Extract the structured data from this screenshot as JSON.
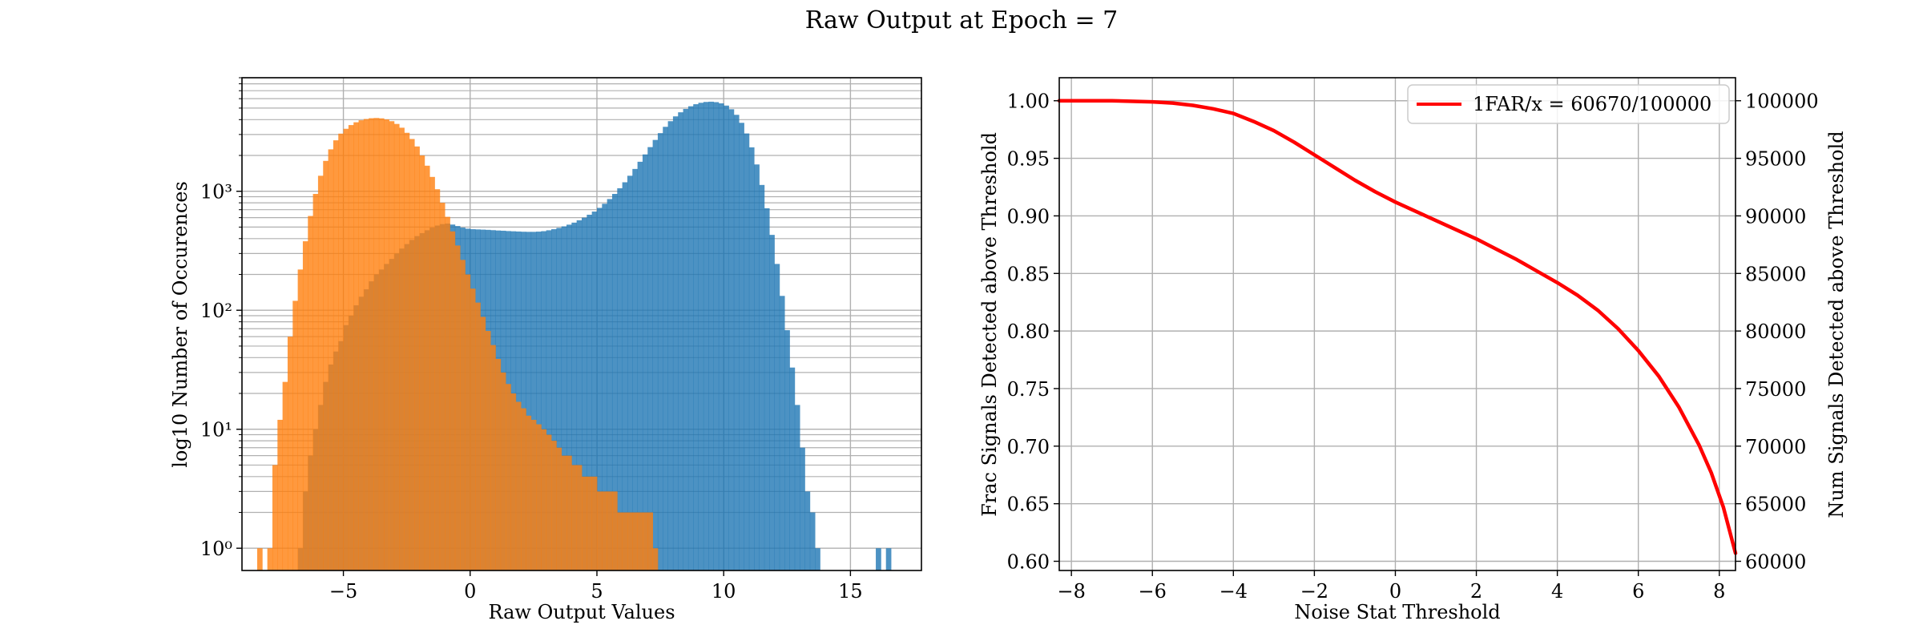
{
  "figure": {
    "title": "Raw Output at Epoch = 7"
  },
  "colors": {
    "blue": "#1f77b4",
    "orange": "#ff7f0e",
    "red": "#ff0000",
    "grid": "#b0b0b0"
  },
  "chart_data": [
    {
      "type": "bar",
      "subtype": "histogram",
      "xlabel": "Raw Output Values",
      "ylabel": "log10 Number of Occurences",
      "xlim": [
        -9.0,
        17.8
      ],
      "ylim": [
        0.65,
        9000
      ],
      "yscale": "log",
      "xticks": [
        -5,
        0,
        5,
        10,
        15
      ],
      "xtick_labels": [
        "−5",
        "0",
        "5",
        "10",
        "15"
      ],
      "yticks": [
        1,
        10,
        100,
        1000
      ],
      "ytick_labels": [
        "10⁰",
        "10¹",
        "10²",
        "10³"
      ],
      "grid": true,
      "bin_width": 0.2,
      "series": [
        {
          "color": "#1f77b4",
          "alpha": 0.8,
          "bins": [
            [
              -6.7,
              1.0
            ],
            [
              -6.5,
              3.0
            ],
            [
              -6.3,
              6.0
            ],
            [
              -6.1,
              10.0
            ],
            [
              -5.9,
              16.0
            ],
            [
              -5.7,
              25.0
            ],
            [
              -5.5,
              35.0
            ],
            [
              -5.3,
              45.0
            ],
            [
              -5.1,
              55.0
            ],
            [
              -4.9,
              75.0
            ],
            [
              -4.7,
              90.0
            ],
            [
              -4.5,
              110.0
            ],
            [
              -4.3,
              130.0
            ],
            [
              -4.1,
              150.0
            ],
            [
              -3.9,
              175.0
            ],
            [
              -3.7,
              200.0
            ],
            [
              -3.5,
              220.0
            ],
            [
              -3.3,
              245.0
            ],
            [
              -3.1,
              270.0
            ],
            [
              -2.9,
              300.0
            ],
            [
              -2.7,
              330.0
            ],
            [
              -2.5,
              360.0
            ],
            [
              -2.3,
              390.0
            ],
            [
              -2.1,
              420.0
            ],
            [
              -1.9,
              445.0
            ],
            [
              -1.7,
              470.0
            ],
            [
              -1.5,
              495.0
            ],
            [
              -1.3,
              515.0
            ],
            [
              -1.1,
              530.0
            ],
            [
              -0.9,
              535.0
            ],
            [
              -0.7,
              525.0
            ],
            [
              -0.5,
              510.0
            ],
            [
              -0.3,
              495.0
            ],
            [
              -0.1,
              485.0
            ],
            [
              0.1,
              480.0
            ],
            [
              0.3,
              478.0
            ],
            [
              0.5,
              476.0
            ],
            [
              0.7,
              474.0
            ],
            [
              0.9,
              471.0
            ],
            [
              1.1,
              468.0
            ],
            [
              1.3,
              466.0
            ],
            [
              1.5,
              463.0
            ],
            [
              1.7,
              461.0
            ],
            [
              1.9,
              459.0
            ],
            [
              2.1,
              457.0
            ],
            [
              2.3,
              456.0
            ],
            [
              2.5,
              456.0
            ],
            [
              2.7,
              458.0
            ],
            [
              2.9,
              462.0
            ],
            [
              3.1,
              470.0
            ],
            [
              3.3,
              480.0
            ],
            [
              3.5,
              492.0
            ],
            [
              3.7,
              507.0
            ],
            [
              3.9,
              524.0
            ],
            [
              4.1,
              545.0
            ],
            [
              4.3,
              570.0
            ],
            [
              4.5,
              600.0
            ],
            [
              4.7,
              635.0
            ],
            [
              4.9,
              675.0
            ],
            [
              5.1,
              725.0
            ],
            [
              5.3,
              785.0
            ],
            [
              5.5,
              860.0
            ],
            [
              5.7,
              950.0
            ],
            [
              5.9,
              1060.0
            ],
            [
              6.1,
              1190.0
            ],
            [
              6.3,
              1350.0
            ],
            [
              6.5,
              1540.0
            ],
            [
              6.7,
              1770.0
            ],
            [
              6.9,
              2040.0
            ],
            [
              7.1,
              2350.0
            ],
            [
              7.3,
              2700.0
            ],
            [
              7.5,
              3080.0
            ],
            [
              7.7,
              3480.0
            ],
            [
              7.9,
              3880.0
            ],
            [
              8.1,
              4260.0
            ],
            [
              8.3,
              4610.0
            ],
            [
              8.5,
              4920.0
            ],
            [
              8.7,
              5180.0
            ],
            [
              8.9,
              5390.0
            ],
            [
              9.1,
              5540.0
            ],
            [
              9.3,
              5630.0
            ],
            [
              9.5,
              5660.0
            ],
            [
              9.7,
              5610.0
            ],
            [
              9.9,
              5480.0
            ],
            [
              10.1,
              5250.0
            ],
            [
              10.3,
              4890.0
            ],
            [
              10.5,
              4390.0
            ],
            [
              10.7,
              3760.0
            ],
            [
              10.9,
              3060.0
            ],
            [
              11.1,
              2340.0
            ],
            [
              11.3,
              1680.0
            ],
            [
              11.5,
              1130.0
            ],
            [
              11.7,
              720.0
            ],
            [
              11.9,
              430.0
            ],
            [
              12.1,
              245.0
            ],
            [
              12.3,
              132.0
            ],
            [
              12.5,
              68.0
            ],
            [
              12.7,
              33.0
            ],
            [
              12.9,
              16.0
            ],
            [
              13.1,
              7.0
            ],
            [
              13.3,
              3.0
            ],
            [
              13.5,
              2.0
            ],
            [
              13.7,
              1.0
            ],
            [
              16.1,
              1.0
            ],
            [
              16.5,
              1.0
            ]
          ]
        },
        {
          "color": "#ff7f0e",
          "alpha": 0.8,
          "bins": [
            [
              -8.3,
              1.0
            ],
            [
              -7.9,
              1.0
            ],
            [
              -7.7,
              5.0
            ],
            [
              -7.5,
              12.0
            ],
            [
              -7.3,
              25.0
            ],
            [
              -7.1,
              60.0
            ],
            [
              -6.9,
              120.0
            ],
            [
              -6.7,
              220.0
            ],
            [
              -6.5,
              380.0
            ],
            [
              -6.3,
              620.0
            ],
            [
              -6.1,
              950.0
            ],
            [
              -5.9,
              1350.0
            ],
            [
              -5.7,
              1800.0
            ],
            [
              -5.5,
              2250.0
            ],
            [
              -5.3,
              2680.0
            ],
            [
              -5.1,
              3050.0
            ],
            [
              -4.9,
              3350.0
            ],
            [
              -4.7,
              3600.0
            ],
            [
              -4.5,
              3800.0
            ],
            [
              -4.3,
              3950.0
            ],
            [
              -4.1,
              4050.0
            ],
            [
              -3.9,
              4110.0
            ],
            [
              -3.7,
              4130.0
            ],
            [
              -3.5,
              4100.0
            ],
            [
              -3.3,
              4020.0
            ],
            [
              -3.1,
              3880.0
            ],
            [
              -2.9,
              3680.0
            ],
            [
              -2.7,
              3420.0
            ],
            [
              -2.5,
              3100.0
            ],
            [
              -2.3,
              2750.0
            ],
            [
              -2.1,
              2380.0
            ],
            [
              -1.9,
              2000.0
            ],
            [
              -1.7,
              1640.0
            ],
            [
              -1.5,
              1320.0
            ],
            [
              -1.3,
              1040.0
            ],
            [
              -1.1,
              800.0
            ],
            [
              -0.9,
              610.0
            ],
            [
              -0.7,
              460.0
            ],
            [
              -0.5,
              350.0
            ],
            [
              -0.3,
              265.0
            ],
            [
              -0.1,
              200.0
            ],
            [
              0.1,
              152.0
            ],
            [
              0.3,
              116.0
            ],
            [
              0.5,
              88.0
            ],
            [
              0.7,
              67.0
            ],
            [
              0.9,
              51.0
            ],
            [
              1.1,
              39.0
            ],
            [
              1.3,
              30.0
            ],
            [
              1.5,
              24.0
            ],
            [
              1.7,
              20.0
            ],
            [
              1.9,
              17.0
            ],
            [
              2.1,
              15.0
            ],
            [
              2.3,
              13.0
            ],
            [
              2.5,
              12.0
            ],
            [
              2.7,
              11.0
            ],
            [
              2.9,
              10.0
            ],
            [
              3.1,
              9.0
            ],
            [
              3.3,
              8.0
            ],
            [
              3.5,
              7.0
            ],
            [
              3.7,
              6.0
            ],
            [
              3.9,
              6.0
            ],
            [
              4.1,
              5.0
            ],
            [
              4.3,
              5.0
            ],
            [
              4.5,
              4.0
            ],
            [
              4.7,
              4.0
            ],
            [
              4.9,
              4.0
            ],
            [
              5.1,
              3.0
            ],
            [
              5.3,
              3.0
            ],
            [
              5.5,
              3.0
            ],
            [
              5.7,
              3.0
            ],
            [
              5.9,
              2.0
            ],
            [
              6.1,
              2.0
            ],
            [
              6.3,
              2.0
            ],
            [
              6.5,
              2.0
            ],
            [
              6.7,
              2.0
            ],
            [
              6.9,
              2.0
            ],
            [
              7.1,
              2.0
            ],
            [
              7.3,
              1.0
            ]
          ]
        }
      ]
    },
    {
      "type": "line",
      "xlabel": "Noise Stat Threshold",
      "ylabel": "Frac Signals Detected above Threshold",
      "ylabel_right": "Num Signals Detected above Threshold",
      "xlim": [
        -8.3,
        8.4
      ],
      "ylim": [
        0.592,
        1.02
      ],
      "ylim_right": [
        59200,
        102000
      ],
      "xticks": [
        -8,
        -6,
        -4,
        -2,
        0,
        2,
        4,
        6,
        8
      ],
      "xtick_labels": [
        "−8",
        "−6",
        "−4",
        "−2",
        "0",
        "2",
        "4",
        "6",
        "8"
      ],
      "yticks": [
        0.6,
        0.65,
        0.7,
        0.75,
        0.8,
        0.85,
        0.9,
        0.95,
        1.0
      ],
      "ytick_labels": [
        "0.60",
        "0.65",
        "0.70",
        "0.75",
        "0.80",
        "0.85",
        "0.90",
        "0.95",
        "1.00"
      ],
      "yticks_right": [
        60000,
        65000,
        70000,
        75000,
        80000,
        85000,
        90000,
        95000,
        100000
      ],
      "ytick_labels_right": [
        "60000",
        "65000",
        "70000",
        "75000",
        "80000",
        "85000",
        "90000",
        "95000",
        "100000"
      ],
      "grid": true,
      "legend": "upper right",
      "series": [
        {
          "name": "1FAR/x = 60670/100000",
          "color": "#ff0000",
          "x": [
            -8.3,
            -7.0,
            -6.0,
            -5.5,
            -5.0,
            -4.5,
            -4.0,
            -3.5,
            -3.0,
            -2.5,
            -2.0,
            -1.5,
            -1.0,
            -0.5,
            0.0,
            0.5,
            1.0,
            1.5,
            2.0,
            2.5,
            3.0,
            3.5,
            4.0,
            4.5,
            5.0,
            5.5,
            6.0,
            6.5,
            7.0,
            7.5,
            7.8,
            8.1,
            8.4
          ],
          "y": [
            1.0,
            1.0,
            0.999,
            0.998,
            0.996,
            0.993,
            0.989,
            0.982,
            0.974,
            0.964,
            0.953,
            0.942,
            0.931,
            0.921,
            0.912,
            0.904,
            0.896,
            0.888,
            0.88,
            0.871,
            0.862,
            0.852,
            0.842,
            0.831,
            0.818,
            0.802,
            0.783,
            0.761,
            0.734,
            0.701,
            0.677,
            0.647,
            0.607
          ]
        }
      ]
    }
  ]
}
